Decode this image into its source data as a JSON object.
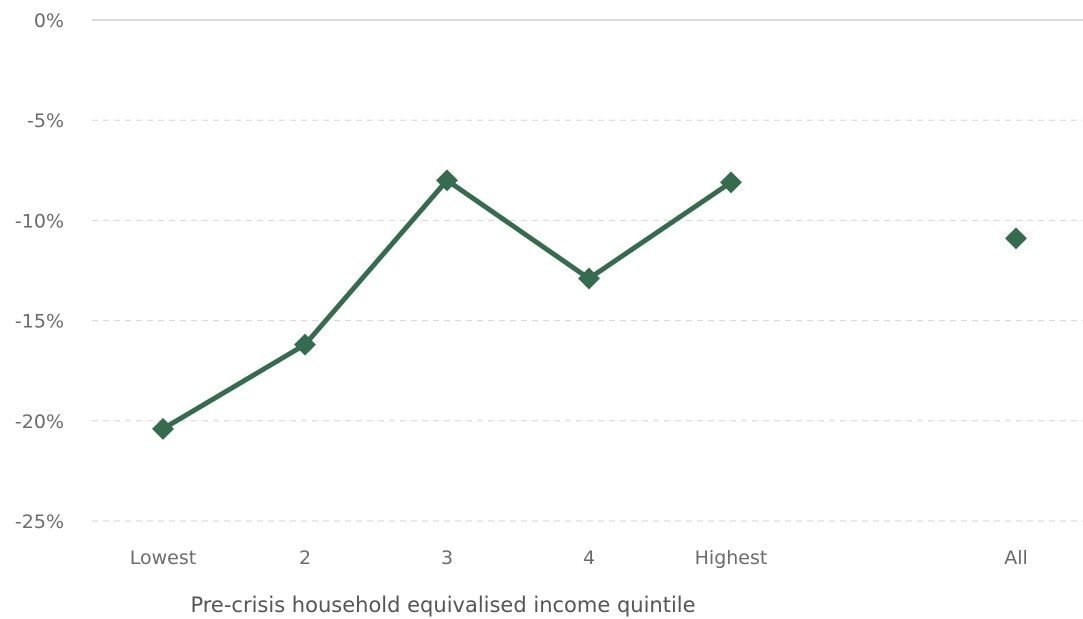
{
  "chart_data": {
    "type": "line",
    "title": "",
    "xlabel": "Pre-crisis household equivalised income quintile",
    "ylabel": "",
    "categories": [
      "Lowest",
      "2",
      "3",
      "4",
      "Highest",
      "All"
    ],
    "ylim": [
      -25,
      0
    ],
    "yticks": [
      0,
      -5,
      -10,
      -15,
      -20,
      -25
    ],
    "ytick_labels": [
      "0%",
      "-5%",
      "-10%",
      "-15%",
      "-20%",
      "-25%"
    ],
    "grid": true,
    "legend": "none",
    "series": [
      {
        "values": [
          -20.4,
          -16.2,
          -8.0,
          -12.9,
          -8.1,
          null
        ],
        "marker": "diamond",
        "color": "#356b4e"
      },
      {
        "values": [
          null,
          null,
          null,
          null,
          null,
          -10.9
        ],
        "marker": "diamond",
        "color": "#356b4e"
      }
    ]
  }
}
